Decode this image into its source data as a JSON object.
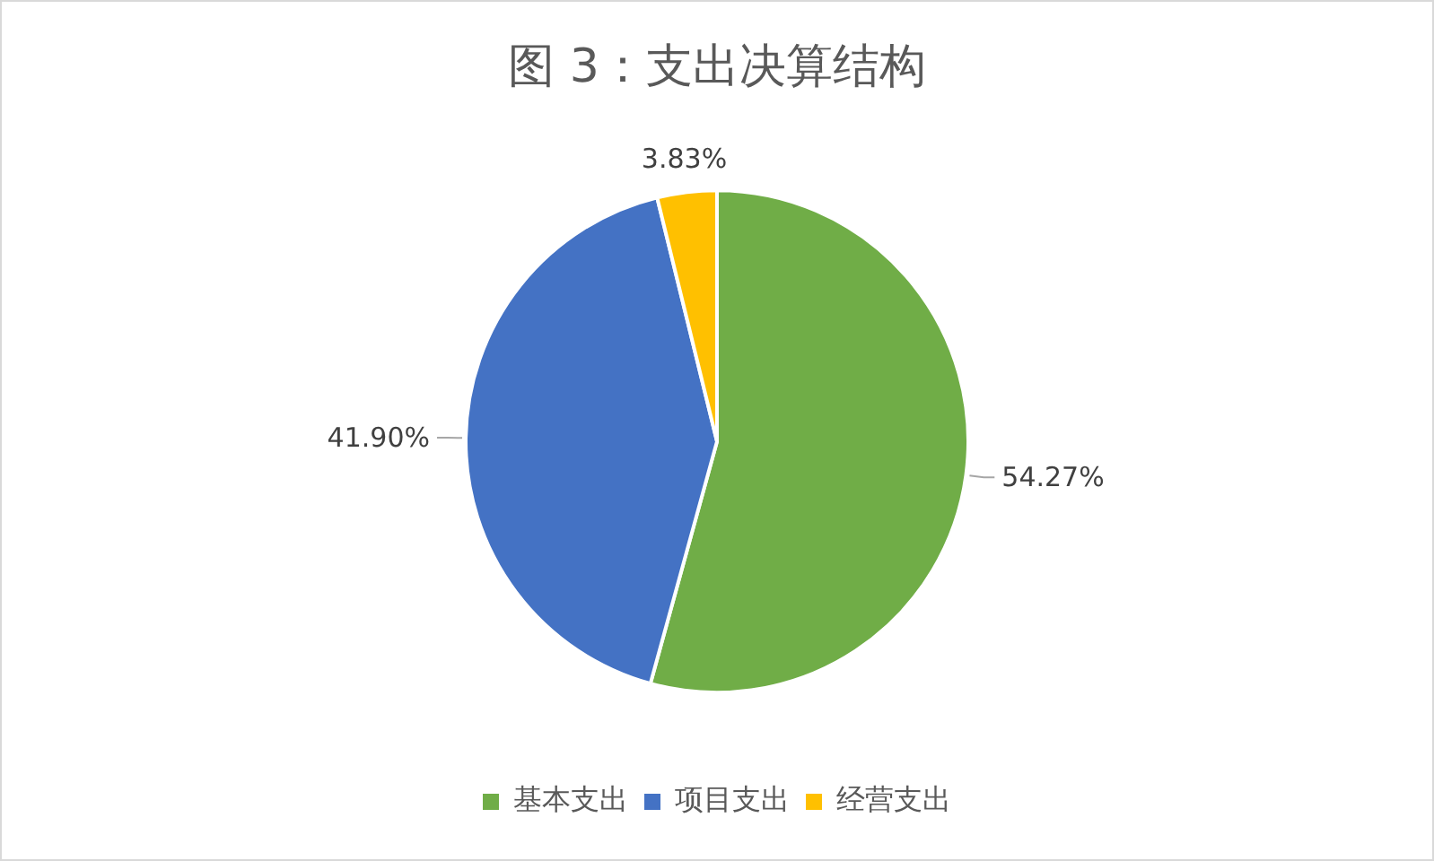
{
  "chart_data": {
    "type": "pie",
    "title": "图 3：支出决算结构",
    "categories": [
      "基本支出",
      "项目支出",
      "经营支出"
    ],
    "values": [
      54.27,
      41.9,
      3.83
    ],
    "colors": [
      "#70ad47",
      "#4472c4",
      "#ffc000"
    ],
    "value_labels": [
      "54.27%",
      "41.90%",
      "3.83%"
    ],
    "legend": "bottom"
  }
}
